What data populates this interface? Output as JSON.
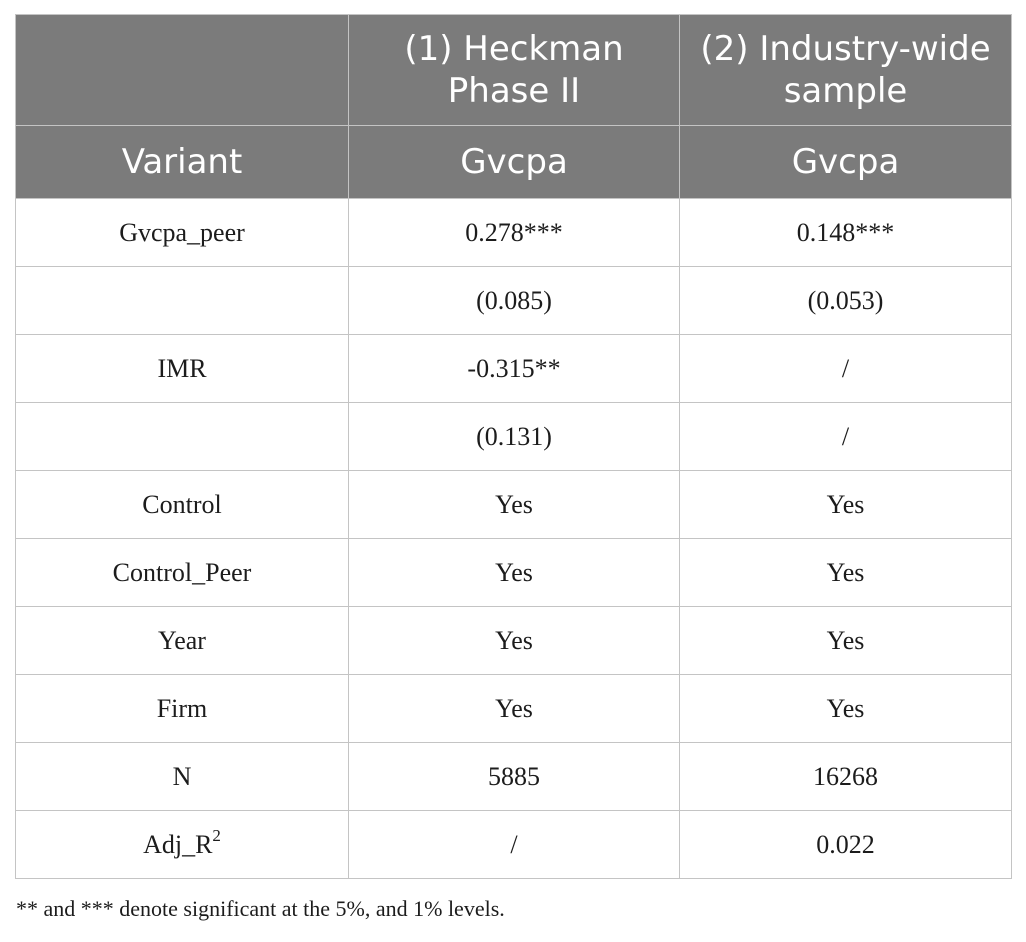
{
  "header": {
    "row1": [
      "",
      "(1) Heckman Phase II",
      "(2) Industry-wide sample"
    ],
    "row2": [
      "Variant",
      "Gvcpa",
      "Gvcpa"
    ]
  },
  "rows": [
    [
      "Gvcpa_peer",
      "0.278***",
      "0.148***"
    ],
    [
      "",
      "(0.085)",
      "(0.053)"
    ],
    [
      "IMR",
      "-0.315**",
      "/"
    ],
    [
      "",
      "(0.131)",
      "/"
    ],
    [
      "Control",
      "Yes",
      "Yes"
    ],
    [
      "Control_Peer",
      "Yes",
      "Yes"
    ],
    [
      "Year",
      "Yes",
      "Yes"
    ],
    [
      "Firm",
      "Yes",
      "Yes"
    ],
    [
      "N",
      "5885",
      "16268"
    ],
    [
      "Adj_R",
      "/",
      "0.022"
    ]
  ],
  "adj_r_superscript": "2",
  "footnote": "** and *** denote significant at the 5%, and 1% levels.",
  "colors": {
    "header_bg": "#7b7b7b",
    "header_text": "#ffffff",
    "border": "#c4c4c4"
  }
}
